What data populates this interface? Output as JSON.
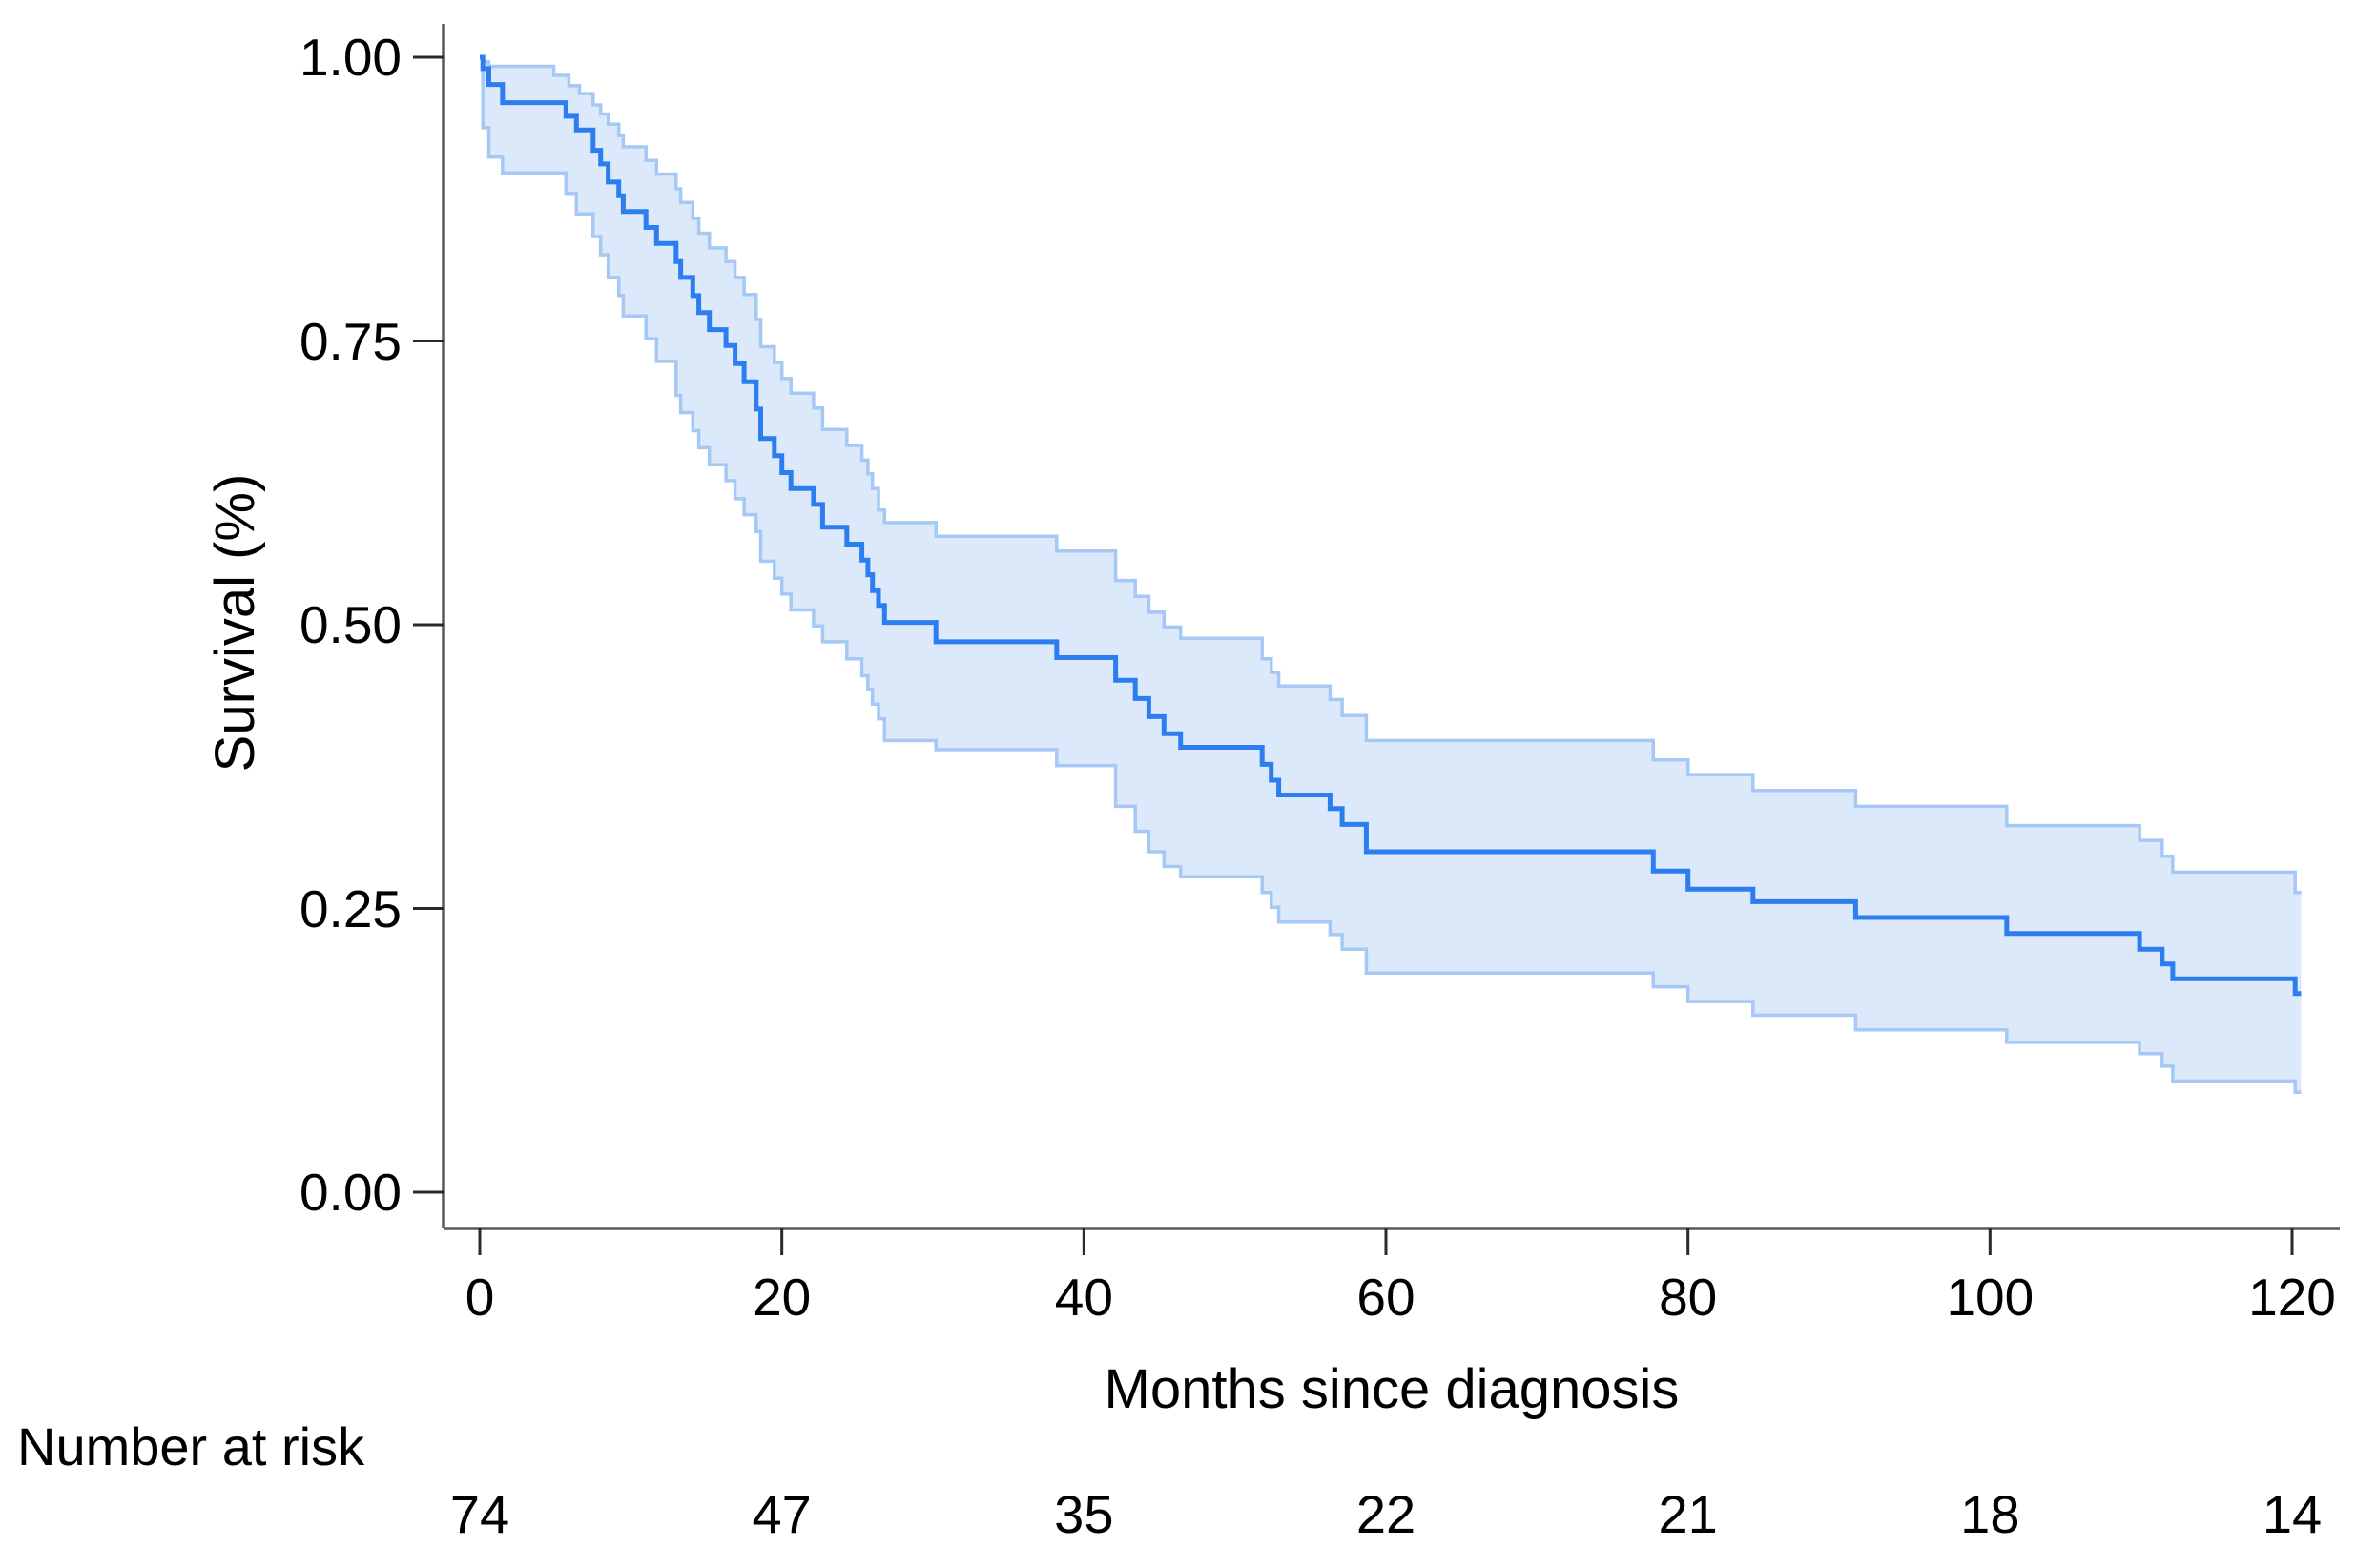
{
  "figure": {
    "background": "#ffffff",
    "y_axis_title": "Survival (%)",
    "x_axis_title": "Months since diagnosis",
    "risk_header": "Number at risk"
  },
  "chart_data": {
    "type": "line",
    "subtype": "kaplan-meier-step-with-confidence-band",
    "title": "",
    "xlabel": "Months since diagnosis",
    "ylabel": "Survival (%)",
    "xlim": [
      0,
      122
    ],
    "ylim": [
      0,
      1
    ],
    "grid": false,
    "legend": "none",
    "xticks": [
      {
        "value": 0,
        "label": "0"
      },
      {
        "value": 20,
        "label": "20"
      },
      {
        "value": 40,
        "label": "40"
      },
      {
        "value": 60,
        "label": "60"
      },
      {
        "value": 80,
        "label": "80"
      },
      {
        "value": 100,
        "label": "100"
      },
      {
        "value": 120,
        "label": "120"
      }
    ],
    "yticks": [
      {
        "value": 0.0,
        "label": "0.00"
      },
      {
        "value": 0.25,
        "label": "0.25"
      },
      {
        "value": 0.5,
        "label": "0.50"
      },
      {
        "value": 0.75,
        "label": "0.75"
      },
      {
        "value": 1.0,
        "label": "1.00"
      }
    ],
    "colors": {
      "main_line": "#2b7df0",
      "ci_edge": "#a5c8f5",
      "ci_fill": "#dce9fb",
      "axis_line": "#58585a",
      "tick_mark": "#2a2a2a",
      "text": "#000000"
    },
    "series": [
      {
        "name": "survival",
        "role": "main",
        "points": [
          [
            0,
            1.0
          ],
          [
            0.2,
            0.99
          ],
          [
            0.6,
            0.976
          ],
          [
            1.5,
            0.96
          ],
          [
            5.7,
            0.948
          ],
          [
            6.4,
            0.936
          ],
          [
            7.5,
            0.918
          ],
          [
            8.0,
            0.906
          ],
          [
            8.5,
            0.89
          ],
          [
            9.2,
            0.878
          ],
          [
            9.5,
            0.864
          ],
          [
            11.0,
            0.85
          ],
          [
            11.7,
            0.836
          ],
          [
            13.0,
            0.82
          ],
          [
            13.3,
            0.806
          ],
          [
            14.1,
            0.79
          ],
          [
            14.5,
            0.775
          ],
          [
            15.2,
            0.76
          ],
          [
            16.3,
            0.746
          ],
          [
            16.9,
            0.73
          ],
          [
            17.5,
            0.714
          ],
          [
            18.3,
            0.69
          ],
          [
            18.6,
            0.664
          ],
          [
            19.5,
            0.649
          ],
          [
            20.0,
            0.634
          ],
          [
            20.6,
            0.62
          ],
          [
            22.1,
            0.606
          ],
          [
            22.7,
            0.586
          ],
          [
            24.3,
            0.571
          ],
          [
            25.3,
            0.557
          ],
          [
            25.7,
            0.544
          ],
          [
            26.0,
            0.53
          ],
          [
            26.4,
            0.517
          ],
          [
            26.8,
            0.502
          ],
          [
            30.2,
            0.485
          ],
          [
            38.2,
            0.471
          ],
          [
            42.1,
            0.451
          ],
          [
            43.4,
            0.435
          ],
          [
            44.3,
            0.419
          ],
          [
            45.3,
            0.404
          ],
          [
            46.4,
            0.392
          ],
          [
            51.8,
            0.377
          ],
          [
            52.4,
            0.363
          ],
          [
            52.9,
            0.35
          ],
          [
            56.3,
            0.338
          ],
          [
            57.1,
            0.324
          ],
          [
            58.7,
            0.3
          ],
          [
            77.7,
            0.283
          ],
          [
            80.0,
            0.267
          ],
          [
            84.3,
            0.256
          ],
          [
            91.1,
            0.242
          ],
          [
            101.1,
            0.228
          ],
          [
            109.9,
            0.214
          ],
          [
            111.4,
            0.201
          ],
          [
            112.1,
            0.188
          ],
          [
            120.2,
            0.175
          ],
          [
            120.6,
            0.175
          ]
        ]
      },
      {
        "name": "ci-upper",
        "role": "ci-upper",
        "points": [
          [
            0,
            1.0
          ],
          [
            0.2,
            0.996
          ],
          [
            0.6,
            0.992
          ],
          [
            4.9,
            0.984
          ],
          [
            5.9,
            0.975
          ],
          [
            6.6,
            0.968
          ],
          [
            7.5,
            0.958
          ],
          [
            8.0,
            0.95
          ],
          [
            8.5,
            0.941
          ],
          [
            9.2,
            0.931
          ],
          [
            9.5,
            0.921
          ],
          [
            11.0,
            0.909
          ],
          [
            11.7,
            0.897
          ],
          [
            13.0,
            0.884
          ],
          [
            13.3,
            0.872
          ],
          [
            14.1,
            0.858
          ],
          [
            14.5,
            0.845
          ],
          [
            15.2,
            0.832
          ],
          [
            16.3,
            0.82
          ],
          [
            16.9,
            0.806
          ],
          [
            17.5,
            0.791
          ],
          [
            18.3,
            0.769
          ],
          [
            18.6,
            0.745
          ],
          [
            19.5,
            0.731
          ],
          [
            20.0,
            0.717
          ],
          [
            20.6,
            0.704
          ],
          [
            22.1,
            0.691
          ],
          [
            22.7,
            0.672
          ],
          [
            24.3,
            0.658
          ],
          [
            25.3,
            0.645
          ],
          [
            25.7,
            0.633
          ],
          [
            26.0,
            0.62
          ],
          [
            26.4,
            0.601
          ],
          [
            26.8,
            0.59
          ],
          [
            30.2,
            0.578
          ],
          [
            38.2,
            0.565
          ],
          [
            42.1,
            0.539
          ],
          [
            43.4,
            0.525
          ],
          [
            44.3,
            0.511
          ],
          [
            45.3,
            0.498
          ],
          [
            46.4,
            0.488
          ],
          [
            51.8,
            0.47
          ],
          [
            52.4,
            0.458
          ],
          [
            52.9,
            0.446
          ],
          [
            56.3,
            0.434
          ],
          [
            57.1,
            0.42
          ],
          [
            58.7,
            0.398
          ],
          [
            77.7,
            0.381
          ],
          [
            80.0,
            0.368
          ],
          [
            84.3,
            0.354
          ],
          [
            91.1,
            0.34
          ],
          [
            101.1,
            0.323
          ],
          [
            109.9,
            0.31
          ],
          [
            111.4,
            0.296
          ],
          [
            112.1,
            0.282
          ],
          [
            120.2,
            0.264
          ],
          [
            120.6,
            0.264
          ]
        ]
      },
      {
        "name": "ci-lower",
        "role": "ci-lower",
        "points": [
          [
            0,
            1.0
          ],
          [
            0.2,
            0.938
          ],
          [
            0.6,
            0.912
          ],
          [
            1.5,
            0.898
          ],
          [
            5.7,
            0.88
          ],
          [
            6.4,
            0.862
          ],
          [
            7.5,
            0.842
          ],
          [
            8.0,
            0.826
          ],
          [
            8.5,
            0.806
          ],
          [
            9.2,
            0.79
          ],
          [
            9.5,
            0.772
          ],
          [
            11.0,
            0.752
          ],
          [
            11.7,
            0.732
          ],
          [
            13.0,
            0.702
          ],
          [
            13.3,
            0.687
          ],
          [
            14.1,
            0.671
          ],
          [
            14.5,
            0.656
          ],
          [
            15.2,
            0.641
          ],
          [
            16.3,
            0.627
          ],
          [
            16.9,
            0.611
          ],
          [
            17.5,
            0.597
          ],
          [
            18.3,
            0.582
          ],
          [
            18.6,
            0.556
          ],
          [
            19.5,
            0.541
          ],
          [
            20.0,
            0.527
          ],
          [
            20.6,
            0.513
          ],
          [
            22.1,
            0.499
          ],
          [
            22.7,
            0.485
          ],
          [
            24.3,
            0.47
          ],
          [
            25.3,
            0.455
          ],
          [
            25.7,
            0.443
          ],
          [
            26.0,
            0.43
          ],
          [
            26.4,
            0.417
          ],
          [
            26.8,
            0.398
          ],
          [
            30.2,
            0.39
          ],
          [
            38.2,
            0.376
          ],
          [
            42.1,
            0.34
          ],
          [
            43.4,
            0.318
          ],
          [
            44.3,
            0.3
          ],
          [
            45.3,
            0.287
          ],
          [
            46.4,
            0.278
          ],
          [
            51.8,
            0.264
          ],
          [
            52.4,
            0.251
          ],
          [
            52.9,
            0.238
          ],
          [
            56.3,
            0.227
          ],
          [
            57.1,
            0.214
          ],
          [
            58.7,
            0.193
          ],
          [
            77.7,
            0.181
          ],
          [
            80.0,
            0.168
          ],
          [
            84.3,
            0.156
          ],
          [
            91.1,
            0.143
          ],
          [
            101.1,
            0.132
          ],
          [
            109.9,
            0.122
          ],
          [
            111.4,
            0.111
          ],
          [
            112.1,
            0.098
          ],
          [
            120.2,
            0.088
          ],
          [
            120.6,
            0.088
          ]
        ]
      }
    ],
    "risk_table": {
      "label": "Number at risk",
      "times": [
        0,
        20,
        40,
        60,
        80,
        100,
        120
      ],
      "counts": [
        74,
        47,
        35,
        22,
        21,
        18,
        14
      ]
    }
  }
}
